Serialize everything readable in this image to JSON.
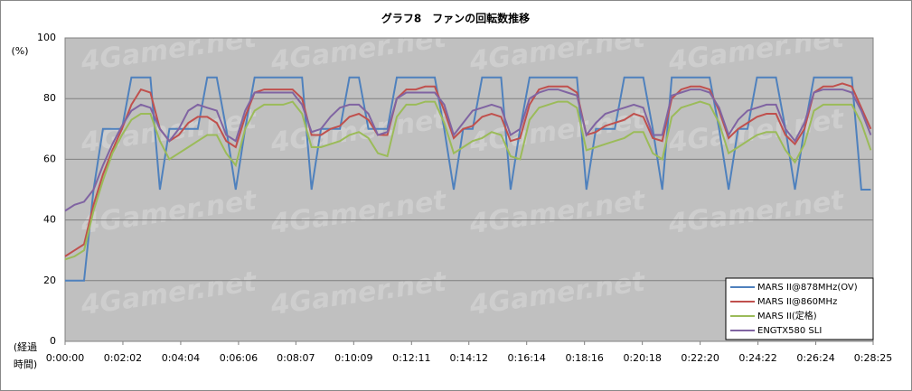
{
  "chart_data": {
    "type": "line",
    "title": "グラフ8　ファンの回転数推移",
    "ylabel": "(%)",
    "xlabel": [
      "(経過",
      "時間)"
    ],
    "watermark": "4Gamer.net",
    "xlim": [
      0,
      1705
    ],
    "ylim": [
      0,
      100
    ],
    "yticks": [
      0,
      20,
      40,
      60,
      80,
      100
    ],
    "xticks": [
      {
        "value": 0,
        "label": "0:00:00"
      },
      {
        "value": 122,
        "label": "0:02:02"
      },
      {
        "value": 244,
        "label": "0:04:04"
      },
      {
        "value": 366,
        "label": "0:06:06"
      },
      {
        "value": 487,
        "label": "0:08:07"
      },
      {
        "value": 609,
        "label": "0:10:09"
      },
      {
        "value": 731,
        "label": "0:12:11"
      },
      {
        "value": 852,
        "label": "0:14:12"
      },
      {
        "value": 974,
        "label": "0:16:14"
      },
      {
        "value": 1096,
        "label": "0:18:16"
      },
      {
        "value": 1218,
        "label": "0:20:18"
      },
      {
        "value": 1340,
        "label": "0:22:20"
      },
      {
        "value": 1462,
        "label": "0:24:22"
      },
      {
        "value": 1584,
        "label": "0:26:24"
      },
      {
        "value": 1705,
        "label": "0:28:25"
      }
    ],
    "grid": true,
    "legend": "bottom-right",
    "x": [
      0,
      20,
      40,
      60,
      80,
      100,
      120,
      140,
      160,
      180,
      200,
      220,
      240,
      260,
      280,
      300,
      320,
      340,
      360,
      380,
      400,
      420,
      440,
      460,
      480,
      500,
      520,
      540,
      560,
      580,
      600,
      620,
      640,
      660,
      680,
      700,
      720,
      740,
      760,
      780,
      800,
      820,
      840,
      860,
      880,
      900,
      920,
      940,
      960,
      980,
      1000,
      1020,
      1040,
      1060,
      1080,
      1100,
      1120,
      1140,
      1160,
      1180,
      1200,
      1220,
      1240,
      1260,
      1280,
      1300,
      1320,
      1340,
      1360,
      1380,
      1400,
      1420,
      1440,
      1460,
      1480,
      1500,
      1520,
      1540,
      1560,
      1580,
      1600,
      1620,
      1640,
      1660,
      1680,
      1700
    ],
    "series": [
      {
        "name": "MARS II@878MHz(OV)",
        "color": "#4f81bd",
        "values": [
          20,
          20,
          20,
          50,
          70,
          70,
          70,
          87,
          87,
          87,
          50,
          70,
          70,
          70,
          70,
          87,
          87,
          70,
          50,
          70,
          87,
          87,
          87,
          87,
          87,
          87,
          50,
          70,
          70,
          70,
          87,
          87,
          70,
          70,
          70,
          87,
          87,
          87,
          87,
          87,
          70,
          50,
          70,
          70,
          87,
          87,
          87,
          50,
          70,
          87,
          87,
          87,
          87,
          87,
          87,
          50,
          70,
          70,
          70,
          87,
          87,
          87,
          70,
          50,
          87,
          87,
          87,
          87,
          87,
          70,
          50,
          70,
          70,
          87,
          87,
          87,
          70,
          50,
          70,
          87,
          87,
          87,
          87,
          87,
          50,
          50
        ]
      },
      {
        "name": "MARS II@860MHz",
        "color": "#c0504d",
        "values": [
          28,
          30,
          32,
          45,
          55,
          63,
          70,
          78,
          83,
          82,
          70,
          66,
          68,
          72,
          74,
          74,
          72,
          66,
          64,
          74,
          82,
          83,
          83,
          83,
          83,
          80,
          68,
          68,
          70,
          71,
          74,
          75,
          73,
          68,
          68,
          80,
          83,
          83,
          84,
          84,
          76,
          67,
          70,
          71,
          74,
          75,
          74,
          66,
          67,
          78,
          83,
          84,
          84,
          84,
          82,
          68,
          69,
          71,
          72,
          73,
          75,
          74,
          67,
          66,
          80,
          83,
          84,
          84,
          83,
          76,
          67,
          70,
          72,
          74,
          75,
          75,
          68,
          65,
          70,
          82,
          84,
          84,
          85,
          84,
          77,
          70
        ]
      },
      {
        "name": "MARS II(定格)",
        "color": "#9bbb59",
        "values": [
          27,
          28,
          30,
          43,
          53,
          62,
          68,
          73,
          75,
          75,
          66,
          60,
          62,
          64,
          66,
          68,
          68,
          62,
          58,
          70,
          76,
          78,
          78,
          78,
          79,
          75,
          64,
          64,
          65,
          66,
          68,
          69,
          67,
          62,
          61,
          74,
          78,
          78,
          79,
          79,
          72,
          62,
          64,
          66,
          67,
          69,
          68,
          61,
          60,
          73,
          77,
          78,
          79,
          79,
          77,
          63,
          64,
          65,
          66,
          67,
          69,
          69,
          62,
          60,
          74,
          77,
          78,
          79,
          78,
          72,
          62,
          64,
          66,
          68,
          69,
          69,
          63,
          59,
          65,
          76,
          78,
          78,
          78,
          78,
          72,
          63
        ]
      },
      {
        "name": "ENGTX580 SLI",
        "color": "#8064a2",
        "values": [
          43,
          45,
          46,
          50,
          58,
          65,
          71,
          76,
          78,
          77,
          70,
          66,
          70,
          76,
          78,
          77,
          76,
          68,
          66,
          76,
          82,
          82,
          82,
          82,
          82,
          78,
          69,
          70,
          74,
          77,
          78,
          78,
          75,
          68,
          69,
          80,
          82,
          82,
          82,
          82,
          78,
          68,
          72,
          76,
          77,
          78,
          77,
          68,
          70,
          80,
          82,
          83,
          83,
          82,
          81,
          68,
          72,
          75,
          76,
          77,
          78,
          77,
          68,
          68,
          81,
          82,
          83,
          83,
          82,
          77,
          68,
          73,
          76,
          77,
          78,
          78,
          70,
          66,
          72,
          82,
          83,
          83,
          83,
          82,
          76,
          68
        ]
      }
    ]
  }
}
